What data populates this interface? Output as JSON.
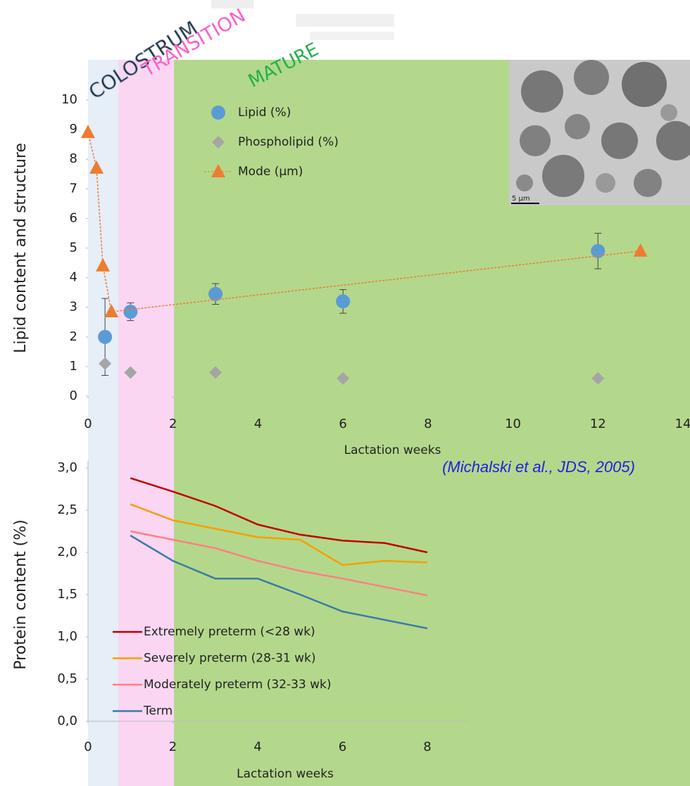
{
  "chart_data": [
    {
      "type": "scatter",
      "x_label": "Lactation weeks",
      "y_label": "Lipid content and structure",
      "xlim": [
        0,
        14
      ],
      "ylim": [
        0,
        10
      ],
      "xticks": [
        0,
        2,
        4,
        6,
        8,
        10,
        12,
        14
      ],
      "yticks": [
        0,
        1,
        2,
        3,
        4,
        5,
        6,
        7,
        8,
        9,
        10
      ],
      "series": [
        {
          "name": "Lipid (%)",
          "color": "#5b9bd5",
          "marker": "circle",
          "x": [
            0.4,
            1,
            3,
            6,
            12
          ],
          "values": [
            2.0,
            2.85,
            3.45,
            3.2,
            4.9
          ],
          "errors": [
            1.3,
            0.3,
            0.35,
            0.4,
            0.6
          ]
        },
        {
          "name": "Phospholipid (%)",
          "color": "#a5a5a5",
          "marker": "diamond",
          "x": [
            0.4,
            1,
            3,
            6,
            12
          ],
          "values": [
            1.1,
            0.8,
            0.8,
            0.6,
            0.6
          ]
        },
        {
          "name": "Mode (µm)",
          "color": "#ed7d31",
          "marker": "triangle",
          "line": "dashed",
          "x": [
            0,
            0.2,
            0.35,
            0.55,
            13
          ],
          "values": [
            8.9,
            7.7,
            4.4,
            2.85,
            4.9
          ]
        }
      ]
    },
    {
      "type": "line",
      "x_label": "Lactation weeks",
      "y_label": "Protein content (%)",
      "xlim": [
        0,
        8
      ],
      "ylim": [
        0,
        3
      ],
      "xticks": [
        0,
        2,
        4,
        6,
        8
      ],
      "yticks": [
        {
          "value": 0,
          "label": "0,0"
        },
        {
          "value": 0.5,
          "label": "0,5"
        },
        {
          "value": 1,
          "label": "1,0"
        },
        {
          "value": 1.5,
          "label": "1,5"
        },
        {
          "value": 2,
          "label": "2,0"
        },
        {
          "value": 2.5,
          "label": "2,5"
        },
        {
          "value": 3,
          "label": "3,0"
        }
      ],
      "x": [
        1,
        2,
        3,
        4,
        5,
        6,
        7,
        8
      ],
      "series": [
        {
          "name": "Extremely preterm (<28 wk)",
          "color": "#c00000",
          "values": [
            2.88,
            2.72,
            2.55,
            2.33,
            2.21,
            2.14,
            2.11,
            2.0
          ]
        },
        {
          "name": "Severely preterm (28-31 wk)",
          "color": "#f5a000",
          "values": [
            2.57,
            2.38,
            2.28,
            2.18,
            2.15,
            1.85,
            1.9,
            1.88
          ]
        },
        {
          "name": "Moderately preterm (32-33 wk)",
          "color": "#ff8080",
          "values": [
            2.25,
            2.15,
            2.05,
            1.9,
            1.78,
            1.69,
            1.59,
            1.49
          ]
        },
        {
          "name": "Term",
          "color": "#3a7ca5",
          "values": [
            2.2,
            1.9,
            1.69,
            1.69,
            1.5,
            1.3,
            1.2,
            1.1
          ]
        }
      ]
    }
  ],
  "phases": [
    {
      "label": "COLOSTRUM",
      "color": "#8ca8c8"
    },
    {
      "label": "TRANSITION",
      "color": "#ff5fc8"
    },
    {
      "label": "MATURE",
      "color": "#22b04a"
    }
  ],
  "citation": "(Michalski et al., JDS, 2005)",
  "inset_scale": "5 µm"
}
